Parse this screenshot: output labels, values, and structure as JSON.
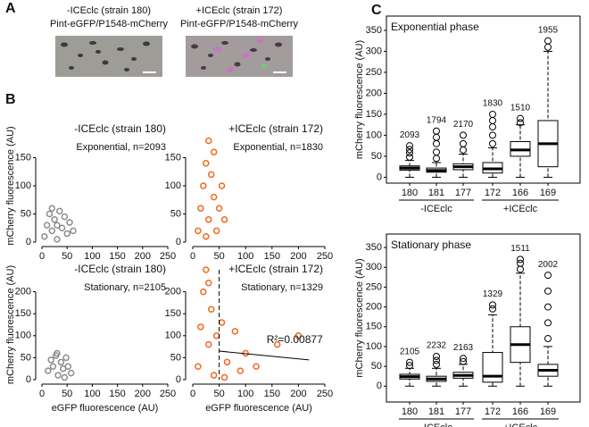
{
  "panel_labels": [
    "A",
    "B",
    "C"
  ],
  "panel_a": [
    {
      "title": "-ICEclc (strain 180)",
      "subtitle": "Pint-eGFP/P1548-mCherry"
    },
    {
      "title": "+ICEclc (strain 172)",
      "subtitle": "Pint-eGFP/P1548-mCherry"
    }
  ],
  "chart_data": [
    {
      "type": "scatter",
      "title": "-ICEclc (strain 180)",
      "subtitle": "Exponential, n=2093",
      "ylabel": "mCherry fluorescence (AU)",
      "color": "#8c8c8c",
      "x": [
        5,
        10,
        15,
        20,
        25,
        30,
        35,
        40,
        45,
        50,
        55,
        62,
        20,
        30
      ],
      "y": [
        10,
        30,
        50,
        20,
        40,
        5,
        55,
        25,
        45,
        15,
        35,
        20,
        60,
        30
      ],
      "xlim": [
        0,
        250
      ],
      "ylim": [
        0,
        200
      ],
      "xticks": [
        0,
        50,
        100,
        150,
        200,
        250
      ],
      "yticks": [
        0,
        50,
        100,
        150
      ]
    },
    {
      "type": "scatter",
      "title": "+ICEclc (strain 172)",
      "subtitle": "Exponential, n=1830",
      "color": "#f26a1b",
      "x": [
        10,
        15,
        20,
        25,
        30,
        30,
        35,
        40,
        45,
        50,
        55,
        25,
        60,
        40
      ],
      "y": [
        20,
        60,
        100,
        140,
        180,
        40,
        120,
        80,
        20,
        60,
        100,
        10,
        40,
        160
      ],
      "xlim": [
        0,
        250
      ],
      "ylim": [
        0,
        200
      ],
      "xticks": [
        0,
        50,
        100,
        150,
        200,
        250
      ],
      "yticks": [
        0,
        50,
        100,
        150
      ]
    },
    {
      "type": "scatter",
      "title": "-ICEclc (strain 180)",
      "subtitle": "Stationary, n=2105",
      "ylabel": "mCherry fluorescence (AU)",
      "xlabel": "eGFP fluorescence (AU)",
      "color": "#8c8c8c",
      "x": [
        12,
        18,
        22,
        28,
        32,
        38,
        42,
        48,
        52,
        58,
        30,
        45
      ],
      "y": [
        20,
        45,
        30,
        55,
        10,
        40,
        25,
        50,
        30,
        15,
        60,
        5
      ],
      "xlim": [
        0,
        250
      ],
      "ylim": [
        0,
        250
      ],
      "xticks": [
        0,
        50,
        100,
        150,
        200,
        250
      ],
      "yticks": [
        0,
        50,
        100,
        150,
        200
      ]
    },
    {
      "type": "scatter",
      "title": "+ICEclc (strain 172)",
      "subtitle": "Stationary, n=1329",
      "xlabel": "eGFP fluorescence (AU)",
      "color": "#f26a1b",
      "x": [
        10,
        15,
        20,
        25,
        30,
        35,
        40,
        45,
        55,
        65,
        80,
        100,
        120,
        160,
        200,
        60,
        90,
        30
      ],
      "y": [
        30,
        120,
        200,
        250,
        80,
        160,
        10,
        100,
        130,
        40,
        110,
        60,
        30,
        80,
        100,
        5,
        20,
        220
      ],
      "xlim": [
        0,
        250
      ],
      "ylim": [
        0,
        250
      ],
      "xticks": [
        0,
        50,
        100,
        150,
        200,
        250
      ],
      "yticks": [
        0,
        50,
        100,
        150,
        200
      ],
      "vline": 50,
      "fit": {
        "x": [
          50,
          220
        ],
        "y": [
          65,
          45
        ]
      },
      "annotation": "R²=0.00877"
    },
    {
      "type": "box",
      "title": "Exponential phase",
      "ylabel": "mCherry fluorescence (AU)",
      "categories": [
        "180",
        "181",
        "177",
        "172",
        "166",
        "169"
      ],
      "groups": [
        "-ICEclc",
        "+ICEclc"
      ],
      "boxes": [
        {
          "whisker_low": 0,
          "q1": 17,
          "median": 22,
          "q3": 27,
          "whisker_high": 40,
          "outliers": [
            48,
            58,
            66,
            75
          ]
        },
        {
          "whisker_low": 0,
          "q1": 12,
          "median": 16,
          "q3": 22,
          "whisker_high": 35,
          "outliers": [
            45,
            60,
            80,
            95,
            110
          ]
        },
        {
          "whisker_low": 0,
          "q1": 18,
          "median": 25,
          "q3": 32,
          "whisker_high": 55,
          "outliers": [
            65,
            80,
            100
          ]
        },
        {
          "whisker_low": 0,
          "q1": 10,
          "median": 20,
          "q3": 35,
          "whisker_high": 70,
          "outliers": [
            80,
            100,
            120,
            135,
            150
          ]
        },
        {
          "whisker_low": 0,
          "q1": 50,
          "median": 65,
          "q3": 85,
          "whisker_high": 125,
          "outliers": [
            130,
            140
          ]
        },
        {
          "whisker_low": 0,
          "q1": 25,
          "median": 80,
          "q3": 135,
          "whisker_high": 300,
          "outliers": [
            310,
            325
          ]
        }
      ],
      "n_labels": [
        2093,
        1794,
        2170,
        1830,
        1510,
        1955
      ],
      "ylim": [
        -14,
        384
      ],
      "yticks": [
        0,
        50,
        100,
        150,
        200,
        250,
        300,
        350
      ]
    },
    {
      "type": "box",
      "title": "Stationary phase",
      "ylabel": "mCherry fluorescence (AU)",
      "categories": [
        "180",
        "181",
        "177",
        "172",
        "166",
        "169"
      ],
      "groups": [
        "-ICEclc",
        "+ICEclc"
      ],
      "boxes": [
        {
          "whisker_low": 0,
          "q1": 18,
          "median": 24,
          "q3": 30,
          "whisker_high": 45,
          "outliers": [
            52,
            60
          ]
        },
        {
          "whisker_low": 0,
          "q1": 12,
          "median": 18,
          "q3": 25,
          "whisker_high": 45,
          "outliers": [
            55,
            65,
            75
          ]
        },
        {
          "whisker_low": 0,
          "q1": 20,
          "median": 27,
          "q3": 35,
          "whisker_high": 55,
          "outliers": [
            62,
            70
          ]
        },
        {
          "whisker_low": 0,
          "q1": 10,
          "median": 25,
          "q3": 85,
          "whisker_high": 180,
          "outliers": [
            195,
            205
          ]
        },
        {
          "whisker_low": 0,
          "q1": 60,
          "median": 105,
          "q3": 150,
          "whisker_high": 285,
          "outliers": [
            295,
            310,
            320
          ]
        },
        {
          "whisker_low": 0,
          "q1": 25,
          "median": 40,
          "q3": 55,
          "whisker_high": 100,
          "outliers": [
            120,
            160,
            200,
            240,
            280
          ]
        }
      ],
      "n_labels": [
        2105,
        2232,
        2163,
        1329,
        1511,
        2002
      ],
      "ylim": [
        -40,
        384
      ],
      "yticks": [
        0,
        50,
        100,
        150,
        200,
        250,
        300,
        350
      ]
    }
  ]
}
